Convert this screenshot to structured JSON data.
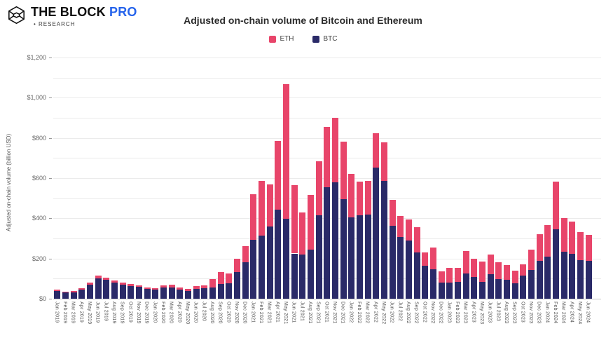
{
  "header": {
    "brand": "THE BLOCK",
    "brand_pro": "PRO",
    "brand_sub": "• RESEARCH"
  },
  "colors": {
    "eth": "#E8456A",
    "btc": "#2A2A68",
    "grid": "#ebebeb",
    "axis": "#c9c9c9",
    "pro_blue": "#2563eb"
  },
  "chart_data": {
    "type": "bar",
    "stacked": true,
    "title": "Adjusted on-chain volume of Bitcoin and Ethereum",
    "ylabel": "Adjusted on-chain volume (billion USD)",
    "ylim": [
      0,
      1200
    ],
    "grid_step": 100,
    "label_step": 200,
    "ytick_labels": [
      "$0",
      "$200",
      "$400",
      "$600",
      "$800",
      "$1,000",
      "$1,200"
    ],
    "legend_position": "top",
    "xtick_rotation": 90,
    "categories": [
      "Jan 2019",
      "Feb 2019",
      "Mar 2019",
      "Apr 2019",
      "May 2019",
      "Jun 2019",
      "Jul 2019",
      "Aug 2019",
      "Sep 2019",
      "Oct 2019",
      "Nov 2019",
      "Dec 2019",
      "Jan 2020",
      "Feb 2020",
      "Mar 2020",
      "Apr 2020",
      "May 2020",
      "Jun 2020",
      "Jul 2020",
      "Aug 2020",
      "Sep 2020",
      "Oct 2020",
      "Nov 2020",
      "Dec 2020",
      "Jan 2021",
      "Feb 2021",
      "Mar 2021",
      "Apr 2021",
      "May 2021",
      "Jun 2021",
      "Jul 2021",
      "Aug 2021",
      "Sep 2021",
      "Oct 2021",
      "Nov 2021",
      "Dec 2021",
      "Jan 2022",
      "Feb 2022",
      "Mar 2022",
      "Apr 2022",
      "May 2022",
      "Jun 2022",
      "Jul 2022",
      "Aug 2022",
      "Sep 2022",
      "Oct 2022",
      "Nov 2022",
      "Dec 2022",
      "Jan 2023",
      "Feb 2023",
      "Mar 2023",
      "Apr 2023",
      "May 2023",
      "Jun 2023",
      "Jul 2023",
      "Aug 2023",
      "Sep 2023",
      "Oct 2023",
      "Nov 2023",
      "Dec 2023",
      "Jan 2024",
      "Feb 2024",
      "Mar 2024",
      "Apr 2024",
      "May 2024",
      "Jun 2024"
    ],
    "series": [
      {
        "name": "ETH",
        "color": "#E8456A",
        "values": [
          6,
          5,
          6,
          8,
          10,
          14,
          12,
          10,
          9,
          8,
          8,
          7,
          8,
          12,
          15,
          10,
          9,
          12,
          15,
          43,
          62,
          50,
          65,
          80,
          227,
          270,
          212,
          343,
          669,
          340,
          209,
          271,
          268,
          299,
          322,
          285,
          217,
          170,
          169,
          171,
          192,
          128,
          105,
          105,
          126,
          66,
          107,
          58,
          74,
          70,
          110,
          90,
          101,
          97,
          82,
          76,
          63,
          58,
          101,
          130,
          155,
          237,
          166,
          162,
          138,
          128
        ]
      },
      {
        "name": "BTC",
        "color": "#2A2A68",
        "values": [
          39,
          31,
          32,
          44,
          69,
          100,
          94,
          81,
          70,
          64,
          58,
          48,
          44,
          55,
          55,
          46,
          39,
          50,
          52,
          56,
          72,
          76,
          133,
          182,
          294,
          315,
          358,
          442,
          399,
          225,
          219,
          244,
          416,
          556,
          578,
          495,
          405,
          414,
          418,
          652,
          585,
          364,
          306,
          288,
          230,
          163,
          147,
          79,
          81,
          85,
          126,
          108,
          85,
          122,
          99,
          93,
          77,
          114,
          143,
          190,
          210,
          345,
          235,
          222,
          192,
          190
        ]
      }
    ]
  }
}
